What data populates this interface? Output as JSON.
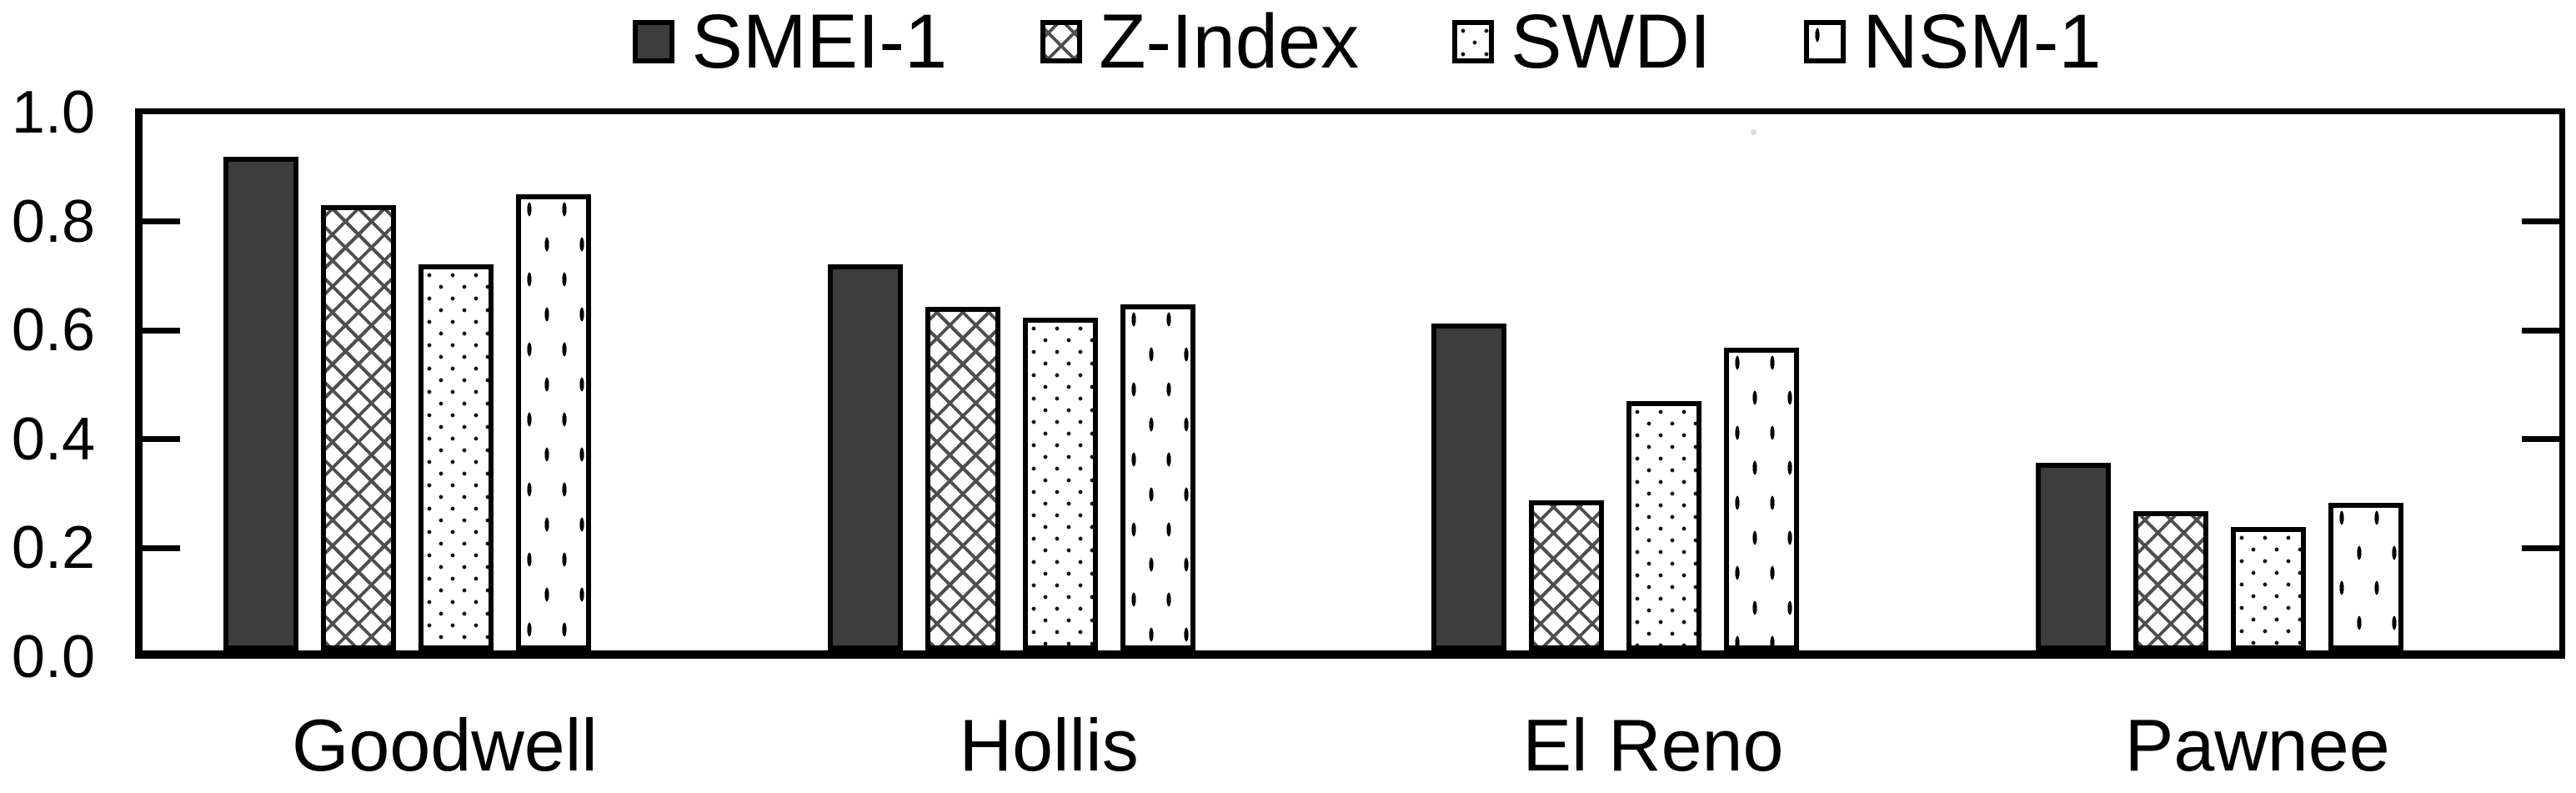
{
  "figure": {
    "background": "#ffffff",
    "axis_color": "#000000",
    "text_color": "#000000"
  },
  "legend": {
    "position": "top-center",
    "items": [
      {
        "label": "SMEI-1",
        "pattern": "solid",
        "swatch_fill": "#3d3d3d"
      },
      {
        "label": "Z-Index",
        "pattern": "crosshatch",
        "swatch_fill": "#ffffff"
      },
      {
        "label": "SWDI",
        "pattern": "dots",
        "swatch_fill": "#ffffff"
      },
      {
        "label": "NSM-1",
        "pattern": "vertical-dashes",
        "swatch_fill": "#ffffff"
      }
    ]
  },
  "chart_data": {
    "type": "bar",
    "title": "",
    "xlabel": "",
    "ylabel": "",
    "categories": [
      "Goodwell",
      "Hollis",
      "El Reno",
      "Pawnee"
    ],
    "series": [
      {
        "name": "SMEI-1",
        "pattern": "solid",
        "fill": "#3d3d3d",
        "values": [
          0.92,
          0.72,
          0.61,
          0.35
        ]
      },
      {
        "name": "Z-Index",
        "pattern": "crosshatch",
        "fill": "#ffffff",
        "values": [
          0.83,
          0.64,
          0.28,
          0.26
        ]
      },
      {
        "name": "SWDI",
        "pattern": "dots",
        "fill": "#ffffff",
        "values": [
          0.72,
          0.62,
          0.465,
          0.23
        ]
      },
      {
        "name": "NSM-1",
        "pattern": "vertical-dashes",
        "fill": "#ffffff",
        "values": [
          0.85,
          0.645,
          0.565,
          0.275
        ]
      }
    ],
    "ylim": [
      0.0,
      1.0
    ],
    "yticks": [
      0.0,
      0.2,
      0.4,
      0.6,
      0.8,
      1.0
    ],
    "ytick_labels": [
      "0.0",
      "0.2",
      "0.4",
      "0.6",
      "0.8",
      "1.0"
    ],
    "grid": false,
    "frame": "full-box-with-inward-ticks",
    "legend_position": "top"
  }
}
